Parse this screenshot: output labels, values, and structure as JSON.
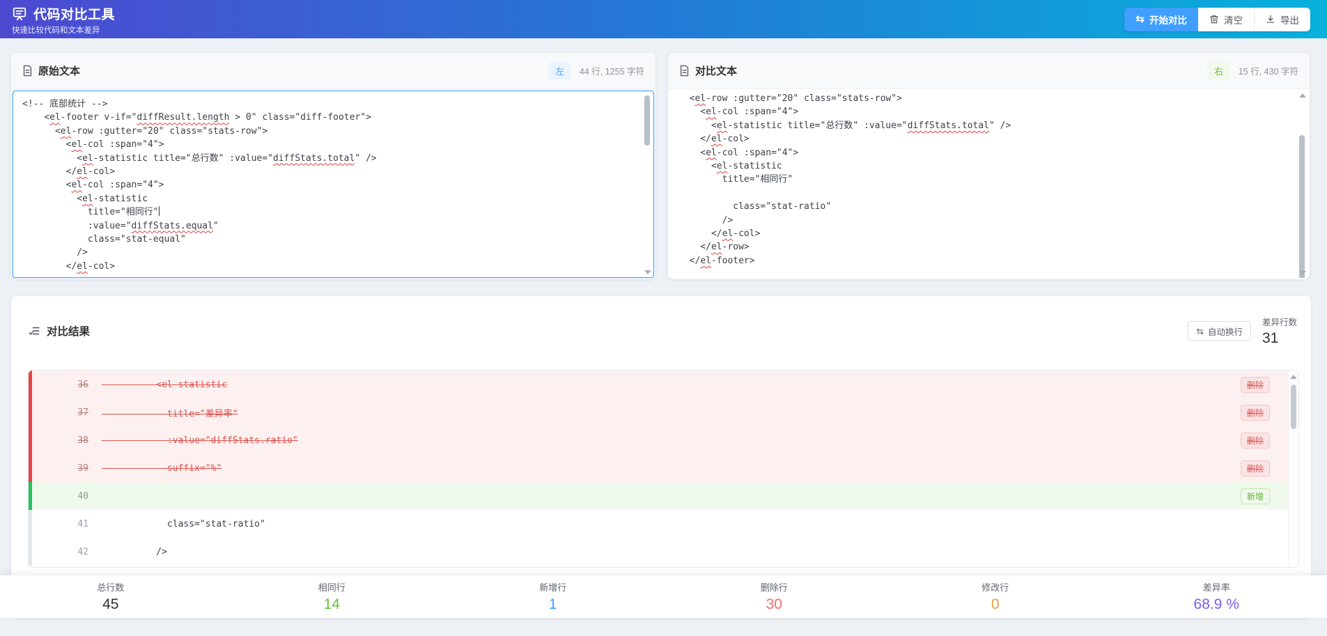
{
  "header": {
    "title": "代码对比工具",
    "subtitle": "快速比较代码和文本差异",
    "buttons": {
      "compare": "开始对比",
      "compare_icon": "⇆",
      "clear": "清空",
      "export": "导出"
    },
    "gradient": [
      "#4d49d1",
      "#08b1dc"
    ],
    "primary_color": "#409eff"
  },
  "left_panel": {
    "title": "原始文本",
    "badge": "左",
    "stats": "44 行, 1255 字符",
    "caret_line": 8,
    "code_lines": [
      "<!-- 底部统计 -->",
      "    <el-footer v-if=\"diffResult.length > 0\" class=\"diff-footer\">",
      "      <el-row :gutter=\"20\" class=\"stats-row\">",
      "        <el-col :span=\"4\">",
      "          <el-statistic title=\"总行数\" :value=\"diffStats.total\" />",
      "        </el-col>",
      "        <el-col :span=\"4\">",
      "          <el-statistic",
      "            title=\"相同行\"",
      "            :value=\"diffStats.equal\"",
      "            class=\"stat-equal\"",
      "          />",
      "        </el-col>"
    ]
  },
  "right_panel": {
    "title": "对比文本",
    "badge": "右",
    "stats": "15 行, 430 字符",
    "code_lines": [
      "  <el-row :gutter=\"20\" class=\"stats-row\">",
      "    <el-col :span=\"4\">",
      "      <el-statistic title=\"总行数\" :value=\"diffStats.total\" />",
      "    </el-col>",
      "    <el-col :span=\"4\">",
      "      <el-statistic",
      "        title=\"相同行\"",
      "",
      "          class=\"stat-ratio\"",
      "        />",
      "      </el-col>",
      "    </el-row>",
      "  </el-footer>"
    ]
  },
  "result": {
    "title": "对比结果",
    "wrap_button": "自动换行",
    "wrap_icon": "⇆",
    "diff_count_label": "差异行数",
    "diff_count": "31",
    "badge_delete": "删除",
    "badge_add": "新增",
    "rows": [
      {
        "num": "36",
        "text": "          <el-statistic",
        "type": "del"
      },
      {
        "num": "37",
        "text": "            title=\"差异率\"",
        "type": "del"
      },
      {
        "num": "38",
        "text": "            :value=\"diffStats.ratio\"",
        "type": "del"
      },
      {
        "num": "39",
        "text": "            suffix=\"%\"",
        "type": "del"
      },
      {
        "num": "40",
        "text": "",
        "type": "add"
      },
      {
        "num": "41",
        "text": "            class=\"stat-ratio\"",
        "type": "same"
      },
      {
        "num": "42",
        "text": "          />",
        "type": "same"
      }
    ]
  },
  "footer": {
    "stats": [
      {
        "label": "总行数",
        "value": "45",
        "color": "#303133"
      },
      {
        "label": "相同行",
        "value": "14",
        "color": "#67c23a"
      },
      {
        "label": "新增行",
        "value": "1",
        "color": "#409eff"
      },
      {
        "label": "删除行",
        "value": "30",
        "color": "#f56c6c"
      },
      {
        "label": "修改行",
        "value": "0",
        "color": "#e6a23c"
      },
      {
        "label": "差异率",
        "value": "68.9 %",
        "color": "#7a5cf5"
      }
    ]
  }
}
